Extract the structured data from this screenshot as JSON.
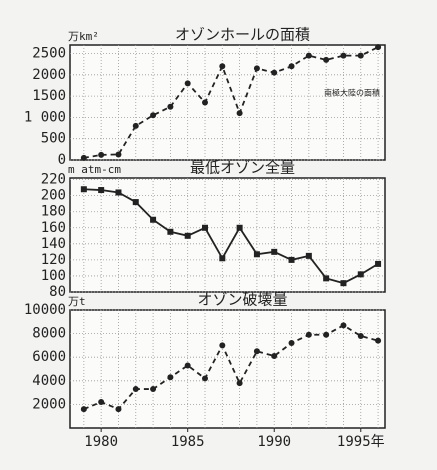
{
  "chart_data": [
    {
      "type": "line",
      "title": "オゾンホールの面積",
      "y_label": "万km²",
      "annotation": "南極大陸の面積",
      "x": [
        1979,
        1980,
        1981,
        1982,
        1983,
        1984,
        1985,
        1986,
        1987,
        1988,
        1989,
        1990,
        1991,
        1992,
        1993,
        1994,
        1995,
        1996
      ],
      "series": [
        {
          "color": "#222222",
          "line_style": "dashed",
          "marker": "circle",
          "values": [
            50,
            120,
            130,
            800,
            1050,
            1250,
            1800,
            1350,
            2200,
            1100,
            2150,
            2050,
            2200,
            2450,
            2350,
            2450,
            2450,
            2650
          ]
        }
      ],
      "xlim": [
        1978.2,
        1996.4
      ],
      "ylim": [
        0,
        2700
      ],
      "yticks": [
        0,
        500,
        {
          "value": 1000,
          "label": "1 000"
        },
        1500,
        2000,
        2500
      ],
      "grid": true
    },
    {
      "type": "line",
      "title": "最低オゾン全量",
      "y_label": "m atm-cm",
      "x": [
        1979,
        1980,
        1981,
        1982,
        1983,
        1984,
        1985,
        1986,
        1987,
        1988,
        1989,
        1990,
        1991,
        1992,
        1993,
        1994,
        1995,
        1996
      ],
      "series": [
        {
          "color": "#222222",
          "line_style": "solid",
          "marker": "square",
          "values": [
            208,
            207,
            204,
            192,
            170,
            155,
            150,
            160,
            122,
            160,
            127,
            130,
            120,
            125,
            97,
            91,
            102,
            115
          ]
        }
      ],
      "xlim": [
        1978.2,
        1996.4
      ],
      "ylim": [
        80,
        222
      ],
      "yticks": [
        80,
        100,
        120,
        140,
        160,
        180,
        200,
        220
      ],
      "grid": true
    },
    {
      "type": "line",
      "title": "オゾン破壊量",
      "y_label": "万t",
      "x": [
        1979,
        1980,
        1981,
        1982,
        1983,
        1984,
        1985,
        1986,
        1987,
        1988,
        1989,
        1990,
        1991,
        1992,
        1993,
        1994,
        1995,
        1996
      ],
      "series": [
        {
          "color": "#222222",
          "line_style": "dashed",
          "marker": "circle",
          "values": [
            1600,
            2200,
            1600,
            3300,
            3300,
            4300,
            5300,
            4200,
            7000,
            3800,
            6500,
            6100,
            7200,
            7900,
            7900,
            8700,
            7800,
            7400
          ]
        }
      ],
      "xlim": [
        1978.2,
        1996.4
      ],
      "ylim": [
        0,
        10000
      ],
      "yticks": [
        2000,
        4000,
        6000,
        8000,
        10000
      ],
      "xticks": [
        1980,
        1985,
        1990,
        {
          "value": 1995,
          "label": "1995年"
        }
      ],
      "grid": true
    }
  ]
}
